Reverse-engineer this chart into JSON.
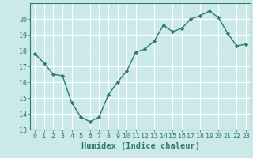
{
  "x": [
    0,
    1,
    2,
    3,
    4,
    5,
    6,
    7,
    8,
    9,
    10,
    11,
    12,
    13,
    14,
    15,
    16,
    17,
    18,
    19,
    20,
    21,
    22,
    23
  ],
  "y": [
    17.8,
    17.2,
    16.5,
    16.4,
    14.7,
    13.8,
    13.5,
    13.8,
    15.2,
    16.0,
    16.7,
    17.9,
    18.1,
    18.6,
    19.6,
    19.2,
    19.4,
    20.0,
    20.2,
    20.5,
    20.1,
    19.1,
    18.3,
    18.4
  ],
  "line_color": "#2d7a6e",
  "marker": "D",
  "marker_size": 2.2,
  "bg_color": "#cce9e9",
  "grid_color": "#ffffff",
  "xlabel": "Humidex (Indice chaleur)",
  "ylim": [
    13,
    21
  ],
  "xlim": [
    -0.5,
    23.5
  ],
  "yticks": [
    13,
    14,
    15,
    16,
    17,
    18,
    19,
    20
  ],
  "xticks": [
    0,
    1,
    2,
    3,
    4,
    5,
    6,
    7,
    8,
    9,
    10,
    11,
    12,
    13,
    14,
    15,
    16,
    17,
    18,
    19,
    20,
    21,
    22,
    23
  ],
  "tick_color": "#2d7a6e",
  "axis_color": "#2d7a6e",
  "xlabel_fontsize": 7.5,
  "tick_fontsize": 6.0,
  "linewidth": 1.0
}
